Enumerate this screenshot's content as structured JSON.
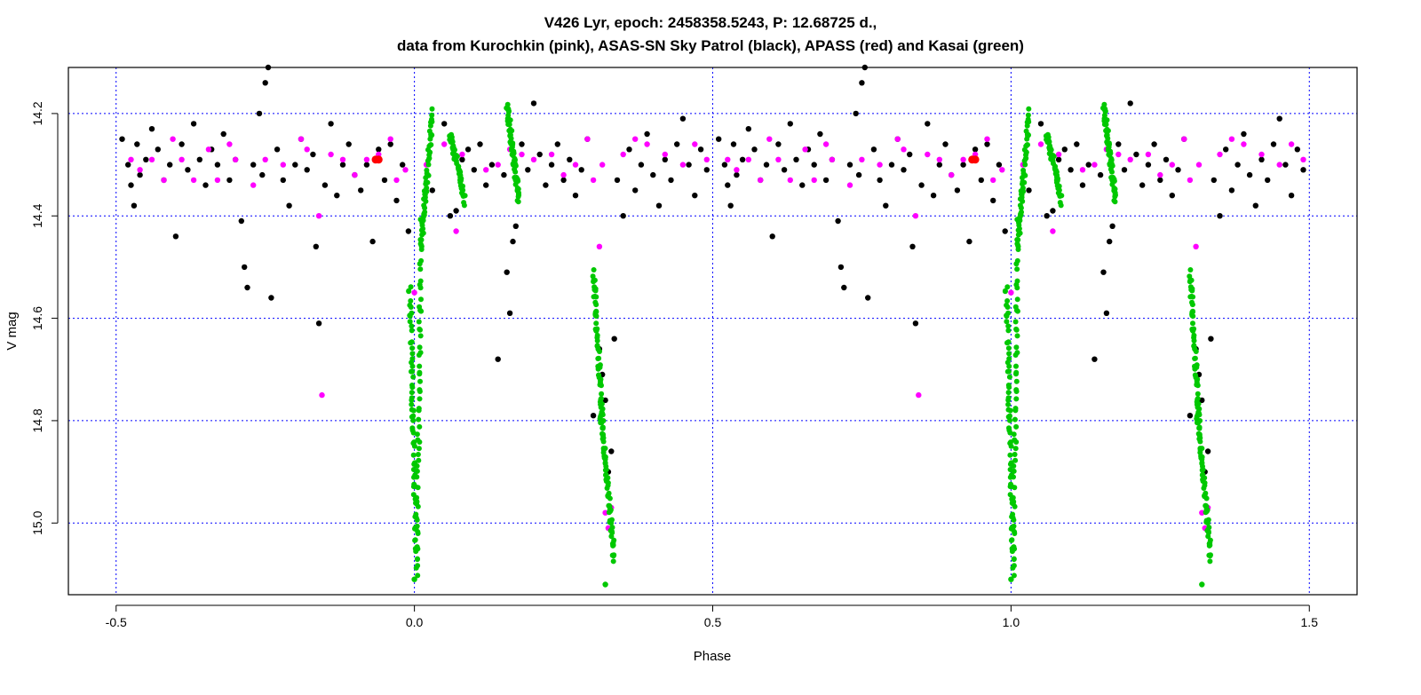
{
  "chart_data": {
    "type": "scatter",
    "title": "V426 Lyr, epoch: 2458358.5243, P: 12.68725 d.,",
    "subtitle": "data from Kurochkin (pink), ASAS-SN Sky Patrol (black), APASS (red) and Kasai (green)",
    "xlabel": "Phase",
    "ylabel": "V mag",
    "xlim": [
      -0.58,
      1.58
    ],
    "ylim": [
      15.14,
      14.11
    ],
    "y_inverted": true,
    "x_ticks": [
      -0.5,
      0.0,
      0.5,
      1.0,
      1.5
    ],
    "x_tick_labels": [
      "-0.5",
      "0.0",
      "0.5",
      "1.0",
      "1.5"
    ],
    "y_ticks": [
      14.2,
      14.4,
      14.6,
      14.8,
      15.0
    ],
    "y_tick_labels": [
      "14.2",
      "14.4",
      "14.6",
      "14.8",
      "15.0"
    ],
    "grid": true,
    "grid_color": "#0000ff",
    "phase_repeat": 1.0,
    "series": [
      {
        "name": "ASAS-SN Sky Patrol",
        "color": "#000000",
        "points": [
          [
            -0.49,
            14.25
          ],
          [
            -0.48,
            14.3
          ],
          [
            -0.475,
            14.34
          ],
          [
            -0.47,
            14.38
          ],
          [
            -0.465,
            14.26
          ],
          [
            -0.46,
            14.32
          ],
          [
            -0.45,
            14.29
          ],
          [
            -0.44,
            14.23
          ],
          [
            -0.43,
            14.27
          ],
          [
            -0.42,
            14.33
          ],
          [
            -0.41,
            14.3
          ],
          [
            -0.4,
            14.44
          ],
          [
            -0.39,
            14.26
          ],
          [
            -0.38,
            14.31
          ],
          [
            -0.37,
            14.22
          ],
          [
            -0.36,
            14.29
          ],
          [
            -0.35,
            14.34
          ],
          [
            -0.34,
            14.27
          ],
          [
            -0.33,
            14.3
          ],
          [
            -0.32,
            14.24
          ],
          [
            -0.31,
            14.33
          ],
          [
            -0.3,
            14.29
          ],
          [
            -0.29,
            14.41
          ],
          [
            -0.285,
            14.5
          ],
          [
            -0.28,
            14.54
          ],
          [
            -0.27,
            14.3
          ],
          [
            -0.26,
            14.2
          ],
          [
            -0.255,
            14.32
          ],
          [
            -0.25,
            14.14
          ],
          [
            -0.245,
            14.11
          ],
          [
            -0.24,
            14.56
          ],
          [
            -0.23,
            14.27
          ],
          [
            -0.22,
            14.33
          ],
          [
            -0.21,
            14.38
          ],
          [
            -0.2,
            14.3
          ],
          [
            -0.19,
            14.25
          ],
          [
            -0.18,
            14.31
          ],
          [
            -0.17,
            14.28
          ],
          [
            -0.165,
            14.46
          ],
          [
            -0.16,
            14.61
          ],
          [
            -0.15,
            14.34
          ],
          [
            -0.14,
            14.22
          ],
          [
            -0.13,
            14.36
          ],
          [
            -0.12,
            14.3
          ],
          [
            -0.11,
            14.26
          ],
          [
            -0.1,
            14.32
          ],
          [
            -0.09,
            14.35
          ],
          [
            -0.08,
            14.3
          ],
          [
            -0.07,
            14.45
          ],
          [
            -0.06,
            14.27
          ],
          [
            -0.05,
            14.33
          ],
          [
            -0.04,
            14.26
          ],
          [
            -0.03,
            14.37
          ],
          [
            -0.02,
            14.3
          ],
          [
            -0.01,
            14.43
          ],
          [
            0.03,
            14.35
          ],
          [
            0.05,
            14.22
          ],
          [
            0.06,
            14.4
          ],
          [
            0.07,
            14.39
          ],
          [
            0.08,
            14.29
          ],
          [
            0.09,
            14.27
          ],
          [
            0.1,
            14.31
          ],
          [
            0.11,
            14.26
          ],
          [
            0.12,
            14.34
          ],
          [
            0.13,
            14.3
          ],
          [
            0.14,
            14.68
          ],
          [
            0.15,
            14.32
          ],
          [
            0.155,
            14.51
          ],
          [
            0.16,
            14.59
          ],
          [
            0.165,
            14.45
          ],
          [
            0.17,
            14.42
          ],
          [
            0.18,
            14.26
          ],
          [
            0.19,
            14.31
          ],
          [
            0.2,
            14.18
          ],
          [
            0.21,
            14.28
          ],
          [
            0.22,
            14.34
          ],
          [
            0.23,
            14.3
          ],
          [
            0.24,
            14.26
          ],
          [
            0.25,
            14.33
          ],
          [
            0.26,
            14.29
          ],
          [
            0.27,
            14.36
          ],
          [
            0.28,
            14.31
          ],
          [
            0.29,
            14.25
          ],
          [
            0.3,
            14.79
          ],
          [
            0.31,
            14.66
          ],
          [
            0.315,
            14.71
          ],
          [
            0.32,
            14.76
          ],
          [
            0.325,
            14.9
          ],
          [
            0.33,
            14.86
          ],
          [
            0.335,
            14.64
          ],
          [
            0.34,
            14.33
          ],
          [
            0.35,
            14.4
          ],
          [
            0.36,
            14.27
          ],
          [
            0.37,
            14.35
          ],
          [
            0.38,
            14.3
          ],
          [
            0.39,
            14.24
          ],
          [
            0.4,
            14.32
          ],
          [
            0.41,
            14.38
          ],
          [
            0.42,
            14.29
          ],
          [
            0.43,
            14.33
          ],
          [
            0.44,
            14.26
          ],
          [
            0.45,
            14.21
          ],
          [
            0.46,
            14.3
          ],
          [
            0.47,
            14.36
          ],
          [
            0.48,
            14.27
          ],
          [
            0.49,
            14.31
          ]
        ]
      },
      {
        "name": "Kurochkin",
        "color": "#ff00ff",
        "points": [
          [
            -0.475,
            14.29
          ],
          [
            -0.46,
            14.31
          ],
          [
            -0.44,
            14.29
          ],
          [
            -0.42,
            14.33
          ],
          [
            -0.405,
            14.25
          ],
          [
            -0.39,
            14.29
          ],
          [
            -0.37,
            14.33
          ],
          [
            -0.345,
            14.27
          ],
          [
            -0.33,
            14.33
          ],
          [
            -0.31,
            14.26
          ],
          [
            -0.3,
            14.29
          ],
          [
            -0.27,
            14.34
          ],
          [
            -0.25,
            14.29
          ],
          [
            -0.22,
            14.3
          ],
          [
            -0.19,
            14.25
          ],
          [
            -0.18,
            14.27
          ],
          [
            -0.16,
            14.4
          ],
          [
            -0.155,
            14.75
          ],
          [
            -0.14,
            14.28
          ],
          [
            -0.12,
            14.29
          ],
          [
            -0.1,
            14.32
          ],
          [
            -0.08,
            14.29
          ],
          [
            -0.06,
            14.28
          ],
          [
            -0.04,
            14.25
          ],
          [
            -0.03,
            14.33
          ],
          [
            -0.015,
            14.31
          ],
          [
            0.0,
            14.55
          ],
          [
            0.02,
            14.3
          ],
          [
            0.05,
            14.26
          ],
          [
            0.07,
            14.43
          ],
          [
            0.08,
            14.28
          ],
          [
            0.12,
            14.31
          ],
          [
            0.14,
            14.3
          ],
          [
            0.16,
            14.27
          ],
          [
            0.18,
            14.28
          ],
          [
            0.2,
            14.29
          ],
          [
            0.23,
            14.28
          ],
          [
            0.25,
            14.32
          ],
          [
            0.27,
            14.3
          ],
          [
            0.29,
            14.25
          ],
          [
            0.3,
            14.33
          ],
          [
            0.31,
            14.46
          ],
          [
            0.315,
            14.3
          ],
          [
            0.32,
            14.98
          ],
          [
            0.325,
            15.01
          ],
          [
            0.33,
            14.97
          ],
          [
            0.35,
            14.28
          ],
          [
            0.37,
            14.25
          ],
          [
            0.39,
            14.26
          ],
          [
            0.42,
            14.28
          ],
          [
            0.45,
            14.3
          ],
          [
            0.47,
            14.26
          ],
          [
            0.49,
            14.29
          ]
        ]
      },
      {
        "name": "APASS",
        "color": "#ff0000",
        "points": [
          [
            -0.065,
            14.29
          ],
          [
            -0.06,
            14.29
          ]
        ]
      },
      {
        "name": "Kasai",
        "color": "#00c800",
        "segments": [
          {
            "x0": -0.008,
            "x1": 0.004,
            "y0": 14.54,
            "y1": 15.1,
            "n": 70
          },
          {
            "x0": 0.004,
            "x1": 0.012,
            "y0": 15.05,
            "y1": 14.4,
            "n": 55
          },
          {
            "x0": 0.012,
            "x1": 0.03,
            "y0": 14.45,
            "y1": 14.2,
            "n": 55
          },
          {
            "x0": 0.06,
            "x1": 0.085,
            "y0": 14.24,
            "y1": 14.37,
            "n": 60
          },
          {
            "x0": 0.155,
            "x1": 0.175,
            "y0": 14.18,
            "y1": 14.37,
            "n": 65
          },
          {
            "x0": 0.3,
            "x1": 0.315,
            "y0": 14.51,
            "y1": 14.8,
            "n": 60
          },
          {
            "x0": 0.312,
            "x1": 0.335,
            "y0": 14.78,
            "y1": 15.07,
            "n": 70
          }
        ],
        "points": [
          [
            0.0,
            15.11
          ],
          [
            0.32,
            15.12
          ]
        ]
      }
    ]
  }
}
